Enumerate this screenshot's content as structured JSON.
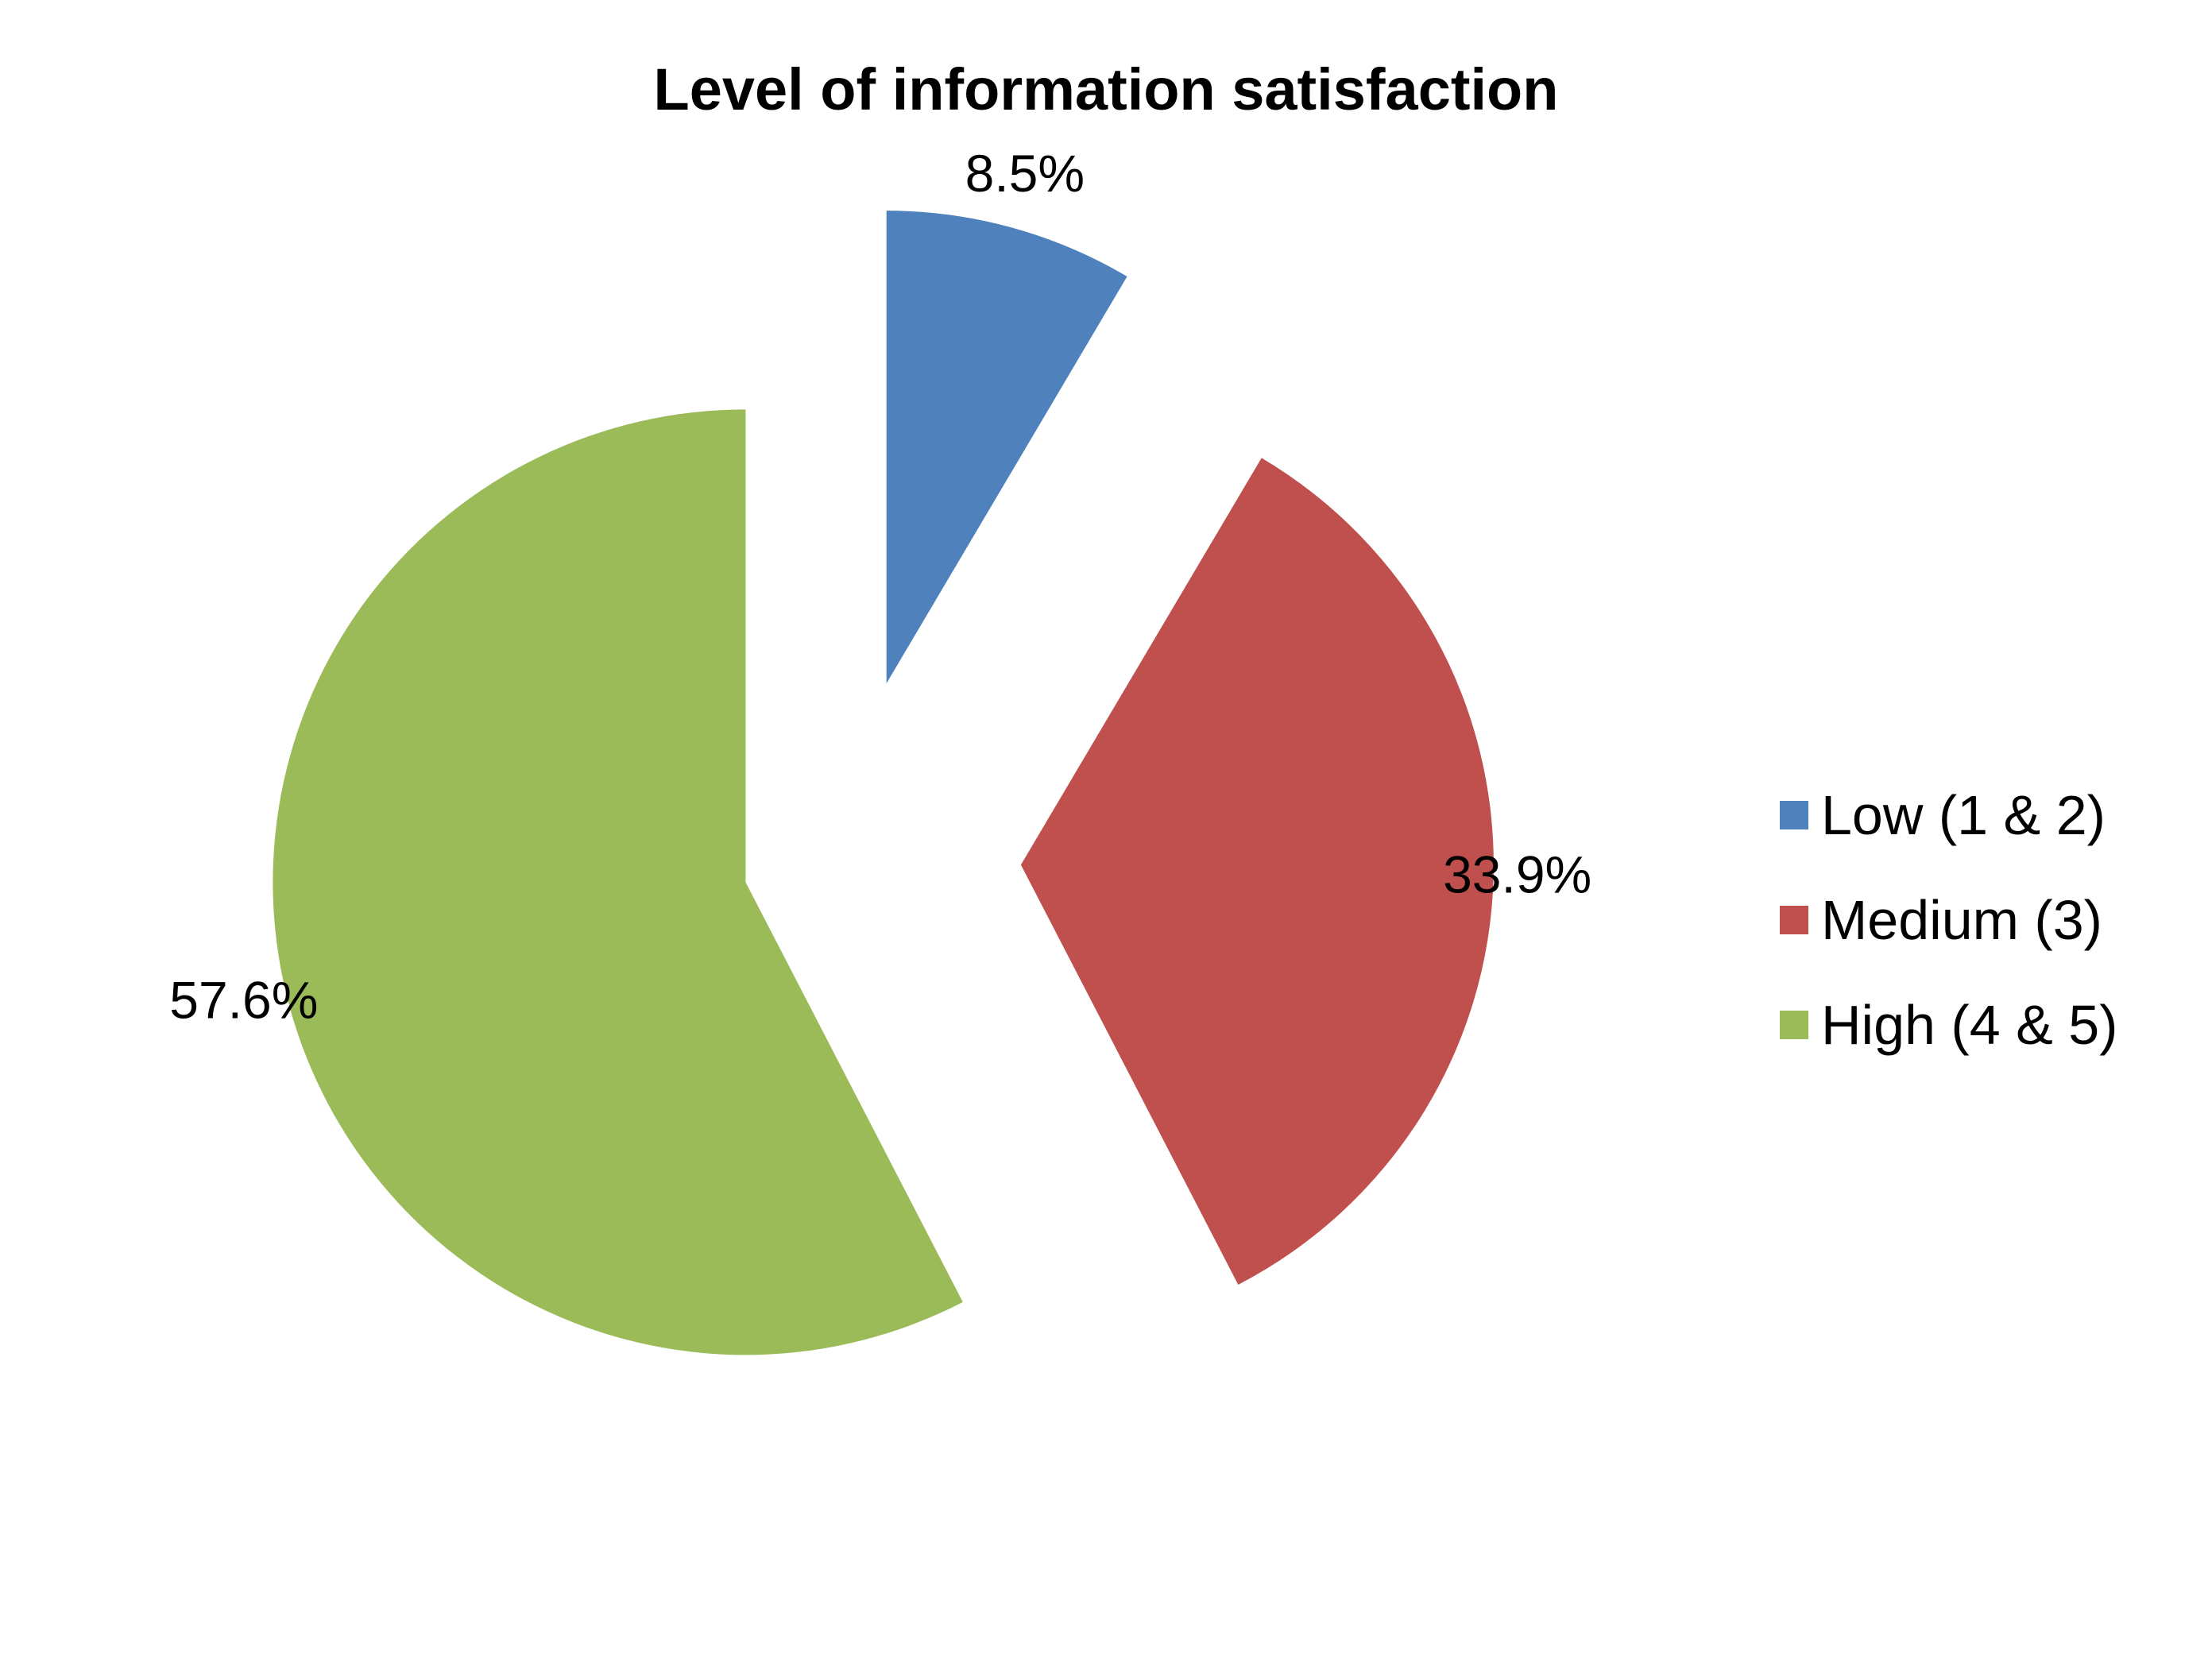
{
  "chart_data": {
    "type": "pie",
    "title": "Level of information satisfaction",
    "categories": [
      "Low (1 & 2)",
      "Medium (3)",
      "High (4 & 5)"
    ],
    "values": [
      8.5,
      33.9,
      57.6
    ],
    "labels": [
      "8.5%",
      "33.9%",
      "57.6%"
    ],
    "colors": [
      "#4F81BD",
      "#C0504D",
      "#9BBB59"
    ],
    "exploded": true,
    "legend_position": "right"
  }
}
